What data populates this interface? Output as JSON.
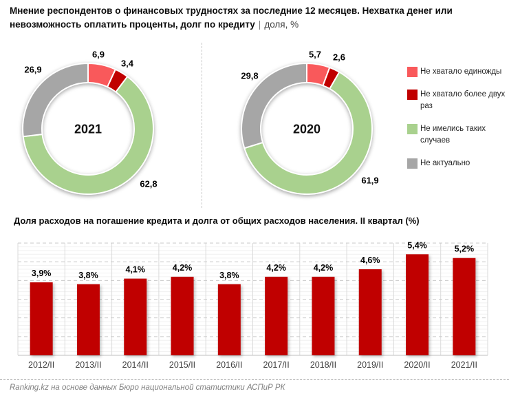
{
  "header": {
    "title_main": "Мнение респондентов о финансовых трудностях за последние 12 месяцев. Нехватка денег или невозможность оплатить проценты, долг по кредиту",
    "title_separator": "|",
    "title_suffix": "доля, %"
  },
  "legend": {
    "position": "right",
    "items": [
      {
        "label": "Не хватало единожды",
        "color": "#F9595B"
      },
      {
        "label": "Не хватало более двух раз",
        "color": "#C00000"
      },
      {
        "label": "Не имелись таких случаев",
        "color": "#A9D18E"
      },
      {
        "label": "Не актуально",
        "color": "#A6A6A6"
      }
    ]
  },
  "chart_data": [
    {
      "type": "pie",
      "subtype": "donut",
      "center_label": "2021",
      "categories": [
        "Не хватало единожды",
        "Не хватало более двух раз",
        "Не имелись таких случаев",
        "Не актуально"
      ],
      "values": [
        6.9,
        3.4,
        62.8,
        26.9
      ],
      "value_labels": [
        "6,9",
        "3,4",
        "62,8",
        "26,9"
      ],
      "colors": [
        "#F9595B",
        "#C00000",
        "#A9D18E",
        "#A6A6A6"
      ],
      "legend_position": "right",
      "start_angle_deg": 0
    },
    {
      "type": "pie",
      "subtype": "donut",
      "center_label": "2020",
      "categories": [
        "Не хватало единожды",
        "Не хватало более двух раз",
        "Не имелись таких случаев",
        "Не актуально"
      ],
      "values": [
        5.7,
        2.6,
        61.9,
        29.8
      ],
      "value_labels": [
        "5,7",
        "2,6",
        "61,9",
        "29,8"
      ],
      "colors": [
        "#F9595B",
        "#C00000",
        "#A9D18E",
        "#A6A6A6"
      ],
      "legend_position": "right",
      "start_angle_deg": 0
    },
    {
      "type": "bar",
      "title": "Доля расходов на погашение кредита и долга от общих расходов населения. II квартал (%)",
      "categories": [
        "2012/II",
        "2013/II",
        "2014/II",
        "2015/II",
        "2016/II",
        "2017/II",
        "2018/II",
        "2019/II",
        "2020/II",
        "2021/II"
      ],
      "values": [
        3.9,
        3.8,
        4.1,
        4.2,
        3.8,
        4.2,
        4.2,
        4.6,
        5.4,
        5.2
      ],
      "value_labels": [
        "3,9%",
        "3,8%",
        "4,1%",
        "4,2%",
        "3,8%",
        "4,2%",
        "4,2%",
        "4,6%",
        "5,4%",
        "5,2%"
      ],
      "xlabel": "",
      "ylabel": "",
      "ylim": [
        0,
        6
      ],
      "bar_color": "#C00000",
      "grid": "horizontal dashed major lines every 1%, faint minor lines every 0.2%, vertical category separators, no y-axis labels"
    }
  ],
  "footer": {
    "source": "Ranking.kz на основе данных Бюро национальной статистики АСПиР РК"
  }
}
